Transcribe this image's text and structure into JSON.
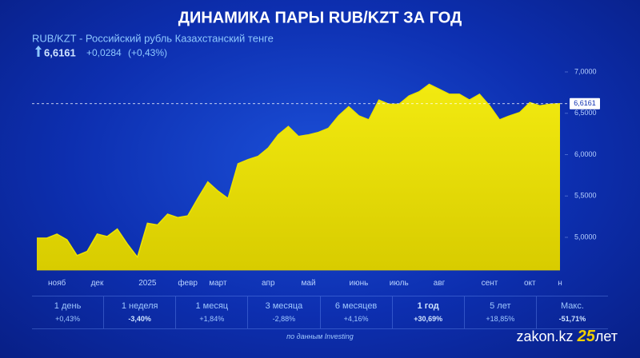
{
  "chart_data": {
    "type": "area",
    "title": "ДИНАМИКА ПАРЫ RUB/KZT ЗА ГОД",
    "subtitle": "RUB/KZT - Российский рубль Казахстанский тенге",
    "price": "6,6161",
    "change": "+0,0284",
    "change_pct": "(+0,43%)",
    "categories": [
      null,
      null,
      "нояб",
      null,
      null,
      null,
      "дек",
      null,
      null,
      null,
      null,
      "2025",
      null,
      null,
      null,
      "февр",
      null,
      null,
      "март",
      null,
      null,
      null,
      null,
      "апр",
      null,
      null,
      null,
      "май",
      null,
      null,
      null,
      null,
      "июнь",
      null,
      null,
      null,
      "июль",
      null,
      null,
      null,
      "авг",
      null,
      null,
      null,
      null,
      "сент",
      null,
      null,
      null,
      "окт",
      null,
      null,
      "н"
    ],
    "values": [
      4.99,
      4.99,
      5.04,
      4.97,
      4.78,
      4.83,
      5.04,
      5.01,
      5.1,
      4.92,
      4.76,
      5.17,
      5.15,
      5.28,
      5.24,
      5.26,
      5.47,
      5.67,
      5.56,
      5.47,
      5.89,
      5.94,
      5.98,
      6.08,
      6.24,
      6.34,
      6.22,
      6.24,
      6.27,
      6.32,
      6.47,
      6.58,
      6.47,
      6.42,
      6.66,
      6.61,
      6.61,
      6.71,
      6.76,
      6.85,
      6.79,
      6.73,
      6.73,
      6.66,
      6.73,
      6.59,
      6.42,
      6.47,
      6.51,
      6.63,
      6.59,
      6.61,
      6.6161
    ],
    "color": "#ece400",
    "ylim": [
      4.6,
      7.1
    ],
    "yticks": [
      {
        "value": 5.0,
        "label": "5,0000"
      },
      {
        "value": 5.5,
        "label": "5,5000"
      },
      {
        "value": 6.0,
        "label": "6,0000"
      },
      {
        "value": 6.5,
        "label": "6,5000"
      },
      {
        "value": 7.0,
        "label": "7,0000"
      }
    ],
    "current": {
      "value": 6.6161,
      "label": "6,6161"
    },
    "periods": [
      {
        "label": "1 день",
        "change": "+0,43%"
      },
      {
        "label": "1 неделя",
        "change": "-3,40%"
      },
      {
        "label": "1 месяц",
        "change": "+1,84%"
      },
      {
        "label": "3 месяца",
        "change": "-2,88%"
      },
      {
        "label": "6 месяцев",
        "change": "+4,16%"
      },
      {
        "label": "1 год",
        "change": "+30,69%"
      },
      {
        "label": "5 лет",
        "change": "+18,85%"
      },
      {
        "label": "Макс.",
        "change": "-51,71%"
      }
    ],
    "source": "по данным Investing",
    "brand": "zakon.kz",
    "brand_number": "25",
    "brand_suffix": "лет"
  }
}
